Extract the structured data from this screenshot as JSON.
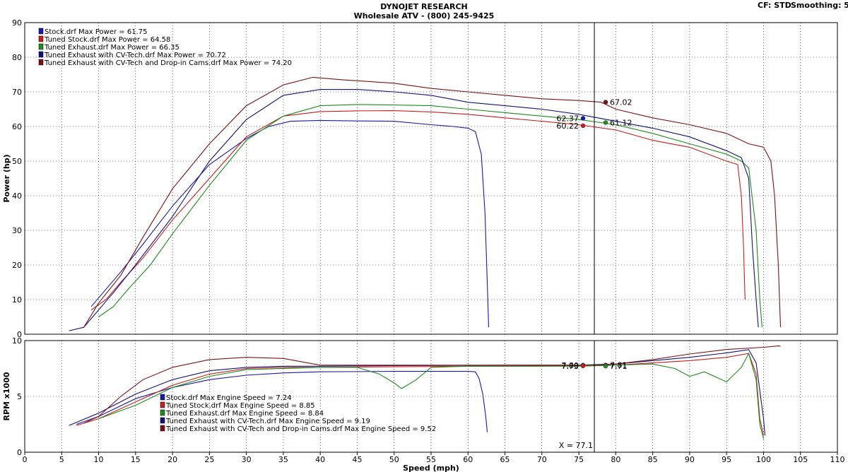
{
  "header": {
    "title": "DYNOJET RESEARCH",
    "subtitle": "Wholesale ATV - (800) 245-9425",
    "cf_text": "CF: STD",
    "smoothing_text": "Smoothing: 5"
  },
  "chart_data": [
    {
      "type": "line",
      "id": "power",
      "xlabel": "Speed (mph)",
      "ylabel": "Power (hp)",
      "xlim": [
        0,
        110
      ],
      "ylim": [
        0,
        90
      ],
      "yticks": [
        0,
        10,
        20,
        30,
        40,
        50,
        60,
        70,
        80,
        90
      ],
      "grid": true,
      "legend_location": "top-left",
      "legend": [
        "Stock.drf Max Power = 61.75",
        "Tuned Stock.drf Max Power = 64.58",
        "Tuned Exhaust.drf Max Power = 66.35",
        "Tuned Exhaust with CV-Tech.drf Max Power = 70.72",
        "Tuned Exhaust with CV-Tech and Drop-in Cams.drf Max Power = 74.20"
      ],
      "series": [
        {
          "name": "Stock.drf",
          "color": "#1a1aa8",
          "points": [
            [
              9,
              8
            ],
            [
              11,
              13
            ],
            [
              13,
              18
            ],
            [
              16,
              26
            ],
            [
              20,
              37
            ],
            [
              25,
              49
            ],
            [
              30,
              56.5
            ],
            [
              33,
              60
            ],
            [
              36,
              61.5
            ],
            [
              40,
              61.75
            ],
            [
              45,
              61.6
            ],
            [
              50,
              61.5
            ],
            [
              55,
              60.5
            ],
            [
              58,
              60
            ],
            [
              60,
              59.5
            ],
            [
              61,
              58.5
            ],
            [
              61.8,
              52
            ],
            [
              62.3,
              35
            ],
            [
              62.6,
              15
            ],
            [
              62.8,
              2
            ]
          ]
        },
        {
          "name": "Tuned Stock.drf",
          "color": "#c81e1e",
          "points": [
            [
              9,
              7
            ],
            [
              11,
              10
            ],
            [
              13,
              15
            ],
            [
              16,
              22
            ],
            [
              20,
              33
            ],
            [
              25,
              45
            ],
            [
              30,
              57
            ],
            [
              35,
              63
            ],
            [
              40,
              64.3
            ],
            [
              45,
              64.5
            ],
            [
              50,
              64.58
            ],
            [
              55,
              64.2
            ],
            [
              60,
              63.5
            ],
            [
              65,
              62.5
            ],
            [
              70,
              61.5
            ],
            [
              75,
              60.5
            ],
            [
              80,
              59
            ],
            [
              85,
              56
            ],
            [
              90,
              54
            ],
            [
              95,
              50
            ],
            [
              96.5,
              49
            ],
            [
              97,
              40
            ],
            [
              97.3,
              25
            ],
            [
              97.5,
              10
            ]
          ]
        },
        {
          "name": "Tuned Exhaust.drf",
          "color": "#1e8c1e",
          "points": [
            [
              10,
              5
            ],
            [
              12,
              8
            ],
            [
              14,
              13
            ],
            [
              17,
              20
            ],
            [
              20,
              29
            ],
            [
              25,
              43
            ],
            [
              30,
              56
            ],
            [
              35,
              63
            ],
            [
              40,
              66
            ],
            [
              45,
              66.35
            ],
            [
              50,
              66.2
            ],
            [
              55,
              66
            ],
            [
              60,
              65
            ],
            [
              65,
              64
            ],
            [
              70,
              63
            ],
            [
              75,
              62
            ],
            [
              80,
              60.5
            ],
            [
              85,
              58
            ],
            [
              90,
              55
            ],
            [
              95,
              52
            ],
            [
              97,
              50
            ],
            [
              98,
              48
            ],
            [
              99,
              30
            ],
            [
              99.5,
              10
            ],
            [
              99.8,
              2
            ]
          ]
        },
        {
          "name": "Tuned Exhaust with CV-Tech.drf",
          "color": "#12127a",
          "points": [
            [
              6,
              1
            ],
            [
              8,
              2
            ],
            [
              10,
              7
            ],
            [
              12,
              12
            ],
            [
              15,
              20
            ],
            [
              20,
              34
            ],
            [
              25,
              50
            ],
            [
              30,
              62
            ],
            [
              35,
              69
            ],
            [
              40,
              70.7
            ],
            [
              45,
              70.72
            ],
            [
              50,
              70
            ],
            [
              55,
              69
            ],
            [
              60,
              67
            ],
            [
              65,
              66
            ],
            [
              70,
              65
            ],
            [
              75,
              63.5
            ],
            [
              80,
              61.5
            ],
            [
              85,
              59.5
            ],
            [
              90,
              57
            ],
            [
              95,
              53
            ],
            [
              97,
              51
            ],
            [
              98,
              45
            ],
            [
              98.5,
              25
            ],
            [
              99,
              10
            ],
            [
              99.3,
              2
            ]
          ]
        },
        {
          "name": "Tuned Exhaust with CV-Tech and Drop-in Cams.drf",
          "color": "#7a1212",
          "points": [
            [
              8,
              2
            ],
            [
              10,
              9
            ],
            [
              13,
              17
            ],
            [
              16,
              28
            ],
            [
              20,
              42
            ],
            [
              25,
              55
            ],
            [
              30,
              66
            ],
            [
              35,
              72
            ],
            [
              39,
              74.2
            ],
            [
              43,
              73.5
            ],
            [
              50,
              72.5
            ],
            [
              55,
              71
            ],
            [
              60,
              70
            ],
            [
              65,
              69
            ],
            [
              70,
              68
            ],
            [
              75,
              67.5
            ],
            [
              78,
              67.02
            ],
            [
              80,
              65
            ],
            [
              85,
              62.5
            ],
            [
              90,
              60.5
            ],
            [
              95,
              58
            ],
            [
              98,
              55
            ],
            [
              100,
              54
            ],
            [
              101,
              50
            ],
            [
              101.5,
              40
            ],
            [
              102,
              20
            ],
            [
              102.3,
              2
            ]
          ]
        }
      ],
      "cursor": {
        "x": 77.1,
        "labels": [
          {
            "text": "62.37",
            "value": 62.37,
            "color": "#1a1aa8"
          },
          {
            "text": "60.22",
            "value": 60.22,
            "color": "#c81e1e"
          },
          {
            "text": "67.02",
            "value": 67.02,
            "color": "#7a1212"
          },
          {
            "text": "61.12",
            "value": 61.12,
            "color": "#1e8c1e"
          }
        ]
      }
    },
    {
      "type": "line",
      "id": "rpm",
      "xlabel": "Speed (mph)",
      "ylabel": "RPM x1000",
      "xlim": [
        0,
        110
      ],
      "ylim": [
        0,
        10
      ],
      "yticks": [
        0,
        5,
        10
      ],
      "xticks": [
        0,
        5,
        10,
        15,
        20,
        25,
        30,
        35,
        40,
        45,
        50,
        55,
        60,
        65,
        70,
        75,
        80,
        85,
        90,
        95,
        100,
        105,
        110
      ],
      "grid": true,
      "legend_location": "bottom-left",
      "legend": [
        "Stock.drf Max Engine Speed = 7.24",
        "Tuned Stock.drf Max Engine Speed = 8.85",
        "Tuned Exhaust.drf Max Engine Speed = 8.84",
        "Tuned Exhaust with CV-Tech.drf Max Engine Speed = 9.19",
        "Tuned Exhaust with CV-Tech and Drop-in Cams.drf Max Engine Speed = 9.52"
      ],
      "series": [
        {
          "name": "Stock.drf",
          "color": "#1a1aa8",
          "points": [
            [
              7,
              2.5
            ],
            [
              10,
              3.2
            ],
            [
              15,
              4.8
            ],
            [
              20,
              5.8
            ],
            [
              25,
              6.5
            ],
            [
              30,
              6.9
            ],
            [
              35,
              7.1
            ],
            [
              40,
              7.2
            ],
            [
              50,
              7.24
            ],
            [
              60,
              7.24
            ],
            [
              61,
              7.2
            ],
            [
              61.5,
              6.6
            ],
            [
              62,
              5.2
            ],
            [
              62.4,
              3.2
            ],
            [
              62.6,
              1.8
            ]
          ]
        },
        {
          "name": "Tuned Stock.drf",
          "color": "#c81e1e",
          "points": [
            [
              7,
              2.4
            ],
            [
              10,
              3.0
            ],
            [
              15,
              4.5
            ],
            [
              20,
              6.0
            ],
            [
              25,
              7.0
            ],
            [
              30,
              7.5
            ],
            [
              35,
              7.6
            ],
            [
              40,
              7.6
            ],
            [
              50,
              7.65
            ],
            [
              60,
              7.7
            ],
            [
              65,
              7.7
            ],
            [
              70,
              7.72
            ],
            [
              75,
              7.73
            ],
            [
              80,
              7.8
            ],
            [
              85,
              8.0
            ],
            [
              90,
              8.2
            ],
            [
              95,
              8.5
            ],
            [
              98,
              8.85
            ],
            [
              99,
              7
            ],
            [
              99.5,
              3
            ],
            [
              100,
              1.5
            ]
          ]
        },
        {
          "name": "Tuned Exhaust.drf",
          "color": "#1e8c1e",
          "points": [
            [
              10,
              3.0
            ],
            [
              15,
              4.2
            ],
            [
              20,
              5.8
            ],
            [
              25,
              6.8
            ],
            [
              30,
              7.4
            ],
            [
              40,
              7.6
            ],
            [
              45,
              7.6
            ],
            [
              48,
              7.0
            ],
            [
              50,
              6.2
            ],
            [
              51,
              5.7
            ],
            [
              53,
              6.5
            ],
            [
              55,
              7.6
            ],
            [
              60,
              7.7
            ],
            [
              65,
              7.7
            ],
            [
              70,
              7.7
            ],
            [
              75,
              7.71
            ],
            [
              80,
              7.8
            ],
            [
              85,
              7.9
            ],
            [
              88,
              7.5
            ],
            [
              90,
              6.8
            ],
            [
              92,
              7.2
            ],
            [
              95,
              6.3
            ],
            [
              97,
              7.6
            ],
            [
              98,
              8.84
            ],
            [
              99,
              6.5
            ],
            [
              99.5,
              2.5
            ],
            [
              100,
              1.2
            ]
          ]
        },
        {
          "name": "Tuned Exhaust with CV-Tech.drf",
          "color": "#12127a",
          "points": [
            [
              6,
              2.4
            ],
            [
              10,
              3.5
            ],
            [
              15,
              5.2
            ],
            [
              20,
              6.5
            ],
            [
              25,
              7.3
            ],
            [
              30,
              7.6
            ],
            [
              35,
              7.7
            ],
            [
              40,
              7.7
            ],
            [
              50,
              7.75
            ],
            [
              60,
              7.78
            ],
            [
              65,
              7.8
            ],
            [
              70,
              7.8
            ],
            [
              75,
              7.8
            ],
            [
              80,
              7.9
            ],
            [
              85,
              8.2
            ],
            [
              90,
              8.5
            ],
            [
              95,
              8.9
            ],
            [
              98,
              9.19
            ],
            [
              99,
              8
            ],
            [
              100,
              3
            ],
            [
              100.2,
              1.5
            ]
          ]
        },
        {
          "name": "Tuned Exhaust with CV-Tech and Drop-in Cams.drf",
          "color": "#7a1212",
          "points": [
            [
              8,
              2.6
            ],
            [
              10,
              3.2
            ],
            [
              13,
              5.0
            ],
            [
              16,
              6.5
            ],
            [
              20,
              7.6
            ],
            [
              25,
              8.3
            ],
            [
              30,
              8.5
            ],
            [
              35,
              8.4
            ],
            [
              40,
              7.8
            ],
            [
              50,
              7.8
            ],
            [
              60,
              7.8
            ],
            [
              70,
              7.8
            ],
            [
              75,
              7.8
            ],
            [
              78,
              7.81
            ],
            [
              80,
              7.9
            ],
            [
              85,
              8.3
            ],
            [
              90,
              8.8
            ],
            [
              95,
              9.2
            ],
            [
              100,
              9.4
            ],
            [
              102,
              9.52
            ],
            [
              102.3,
              9.5
            ]
          ]
        }
      ],
      "cursor": {
        "x": 77.1,
        "x_label": "X = 77.1",
        "labels": [
          {
            "text": "7.80",
            "value": 7.8,
            "color": "#1a1aa8"
          },
          {
            "text": "7.73",
            "value": 7.73,
            "color": "#c81e1e"
          },
          {
            "text": "7.81",
            "value": 7.81,
            "color": "#7a1212"
          },
          {
            "text": "7.71",
            "value": 7.71,
            "color": "#1e8c1e"
          }
        ]
      }
    }
  ]
}
